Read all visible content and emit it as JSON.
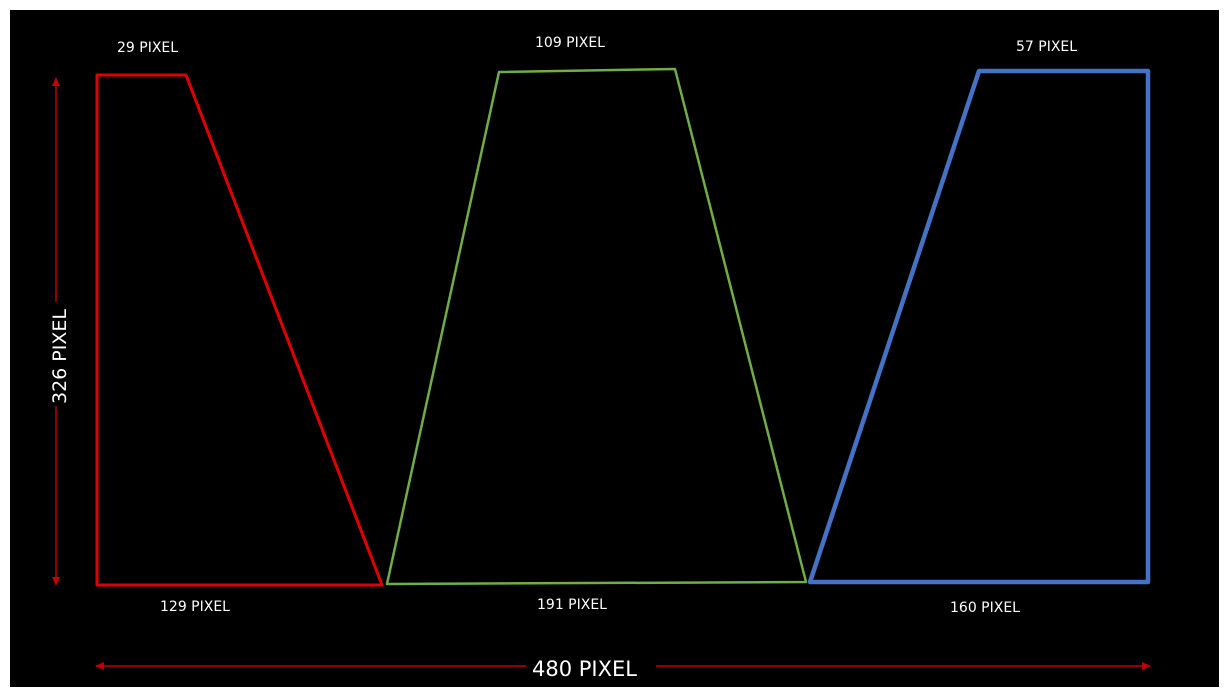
{
  "labels": {
    "red_top": "29 PIXEL",
    "red_bottom": "129 PIXEL",
    "green_top": "109 PIXEL",
    "green_bottom": "191 PIXEL",
    "blue_top": "57 PIXEL",
    "blue_bottom": "160 PIXEL",
    "total_width": "480 PIXEL",
    "total_height": "326 PIXEL"
  },
  "colors": {
    "background": "#000000",
    "red": "#e00000",
    "green": "#70ad47",
    "blue": "#4472c4",
    "dimension_arrow": "#c00000",
    "text": "#ffffff"
  }
}
